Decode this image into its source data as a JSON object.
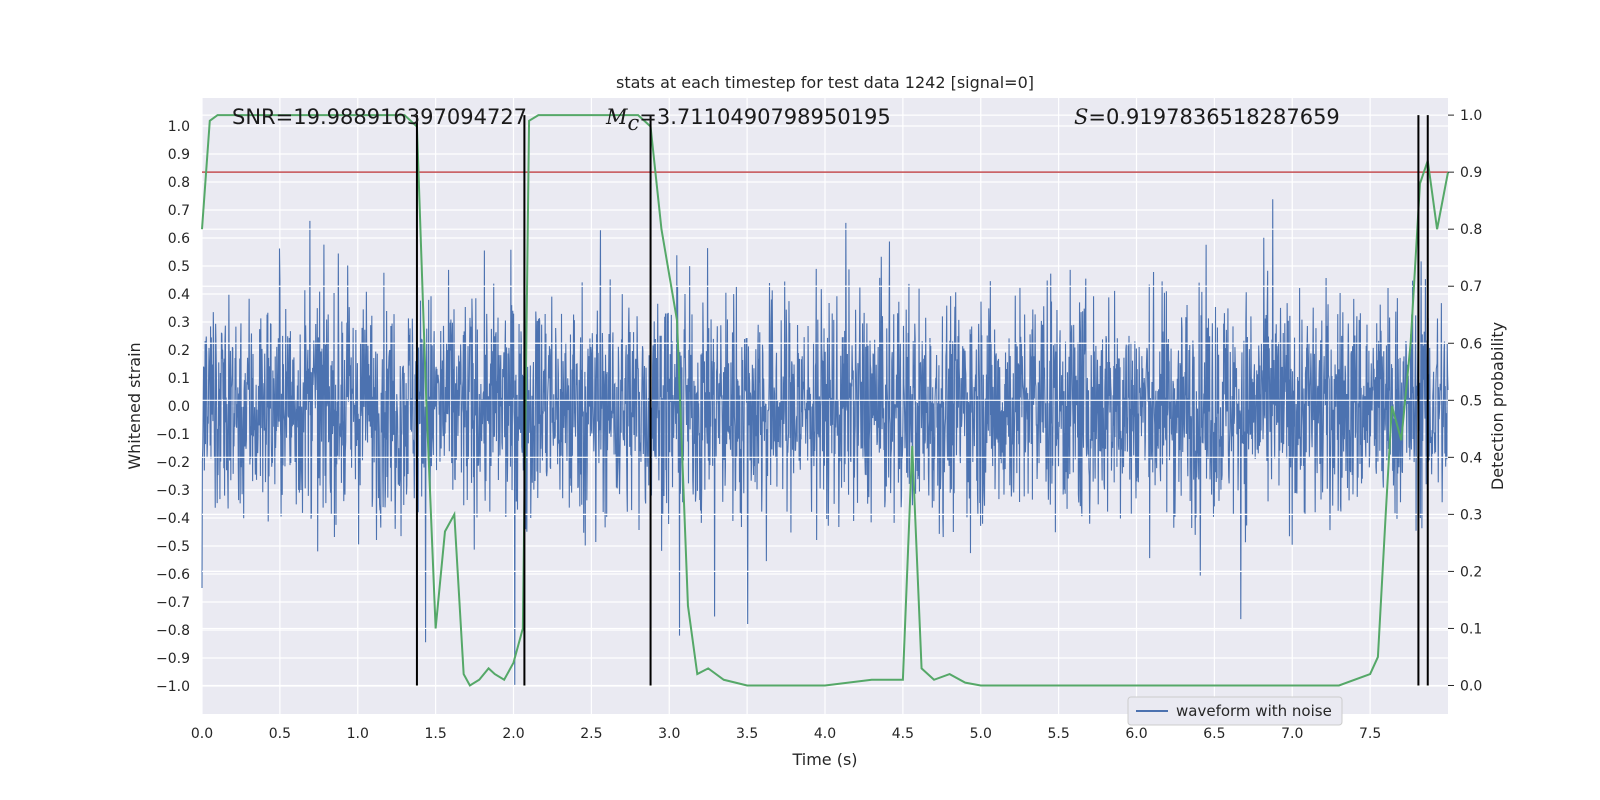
{
  "chart_data": {
    "type": "line",
    "title": "stats at each timestep for test data 1242 [signal=0]",
    "xlabel": "Time (s)",
    "ylabel": "Whitened strain",
    "y2label": "Detection probability",
    "xlim": [
      0.0,
      8.0
    ],
    "ylim": [
      -1.1,
      1.1
    ],
    "y2lim": [
      -0.05,
      1.03
    ],
    "x_ticks": [
      "0.0",
      "0.5",
      "1.0",
      "1.5",
      "2.0",
      "2.5",
      "3.0",
      "3.5",
      "4.0",
      "4.5",
      "5.0",
      "5.5",
      "6.0",
      "6.5",
      "7.0",
      "7.5"
    ],
    "y_ticks": [
      "−1.0",
      "−0.9",
      "−0.8",
      "−0.7",
      "−0.6",
      "−0.5",
      "−0.4",
      "−0.3",
      "−0.2",
      "−0.1",
      "0.0",
      "0.1",
      "0.2",
      "0.3",
      "0.4",
      "0.5",
      "0.6",
      "0.7",
      "0.8",
      "0.9",
      "1.0"
    ],
    "y2_ticks": [
      "0.0",
      "0.1",
      "0.2",
      "0.3",
      "0.4",
      "0.5",
      "0.6",
      "0.7",
      "0.8",
      "0.9",
      "1.0"
    ],
    "grid": true,
    "legend": {
      "placement": "lower-right",
      "entries": [
        "waveform with noise"
      ]
    },
    "annotations": {
      "snr": "SNR=19.988916397094727",
      "mc_symbol": "M",
      "mc_sub": "c",
      "mc_value": "=3.7110490798950195",
      "s_symbol": "S",
      "s_value": "=0.9197836518287659"
    },
    "threshold": {
      "axis": "y2",
      "value": 0.9,
      "color": "#c44e52"
    },
    "vlines": [
      1.38,
      2.07,
      2.88,
      7.81,
      7.87
    ],
    "series": [
      {
        "name": "waveform with noise",
        "axis": "y",
        "color": "#4c72b0",
        "kind": "noise",
        "amplitude_range": [
          -1.0,
          1.0
        ],
        "duration": 8.0
      },
      {
        "axis": "y2",
        "color": "#55a868",
        "x": [
          0.0,
          0.05,
          0.1,
          0.2,
          0.4,
          0.6,
          0.8,
          1.0,
          1.2,
          1.3,
          1.38,
          1.44,
          1.5,
          1.56,
          1.62,
          1.68,
          1.72,
          1.78,
          1.84,
          1.88,
          1.94,
          2.0,
          2.06,
          2.1,
          2.16,
          2.3,
          2.5,
          2.7,
          2.8,
          2.88,
          2.95,
          3.05,
          3.12,
          3.18,
          3.25,
          3.35,
          3.5,
          4.0,
          4.3,
          4.5,
          4.56,
          4.62,
          4.7,
          4.8,
          4.9,
          5.0,
          5.5,
          6.0,
          6.5,
          7.0,
          7.3,
          7.5,
          7.55,
          7.6,
          7.64,
          7.7,
          7.76,
          7.82,
          7.87,
          7.93,
          8.0
        ],
        "values": [
          0.8,
          0.99,
          1.0,
          1.0,
          1.0,
          1.0,
          1.0,
          1.0,
          1.0,
          1.0,
          0.98,
          0.5,
          0.1,
          0.27,
          0.3,
          0.02,
          0.0,
          0.01,
          0.03,
          0.02,
          0.01,
          0.04,
          0.1,
          0.99,
          1.0,
          1.0,
          1.0,
          1.0,
          1.0,
          0.98,
          0.8,
          0.64,
          0.14,
          0.02,
          0.03,
          0.01,
          0.0,
          0.0,
          0.01,
          0.01,
          0.42,
          0.03,
          0.01,
          0.02,
          0.005,
          0.0,
          0.0,
          0.0,
          0.0,
          0.0,
          0.0,
          0.02,
          0.05,
          0.3,
          0.49,
          0.43,
          0.6,
          0.88,
          0.92,
          0.8,
          0.9
        ]
      }
    ]
  }
}
